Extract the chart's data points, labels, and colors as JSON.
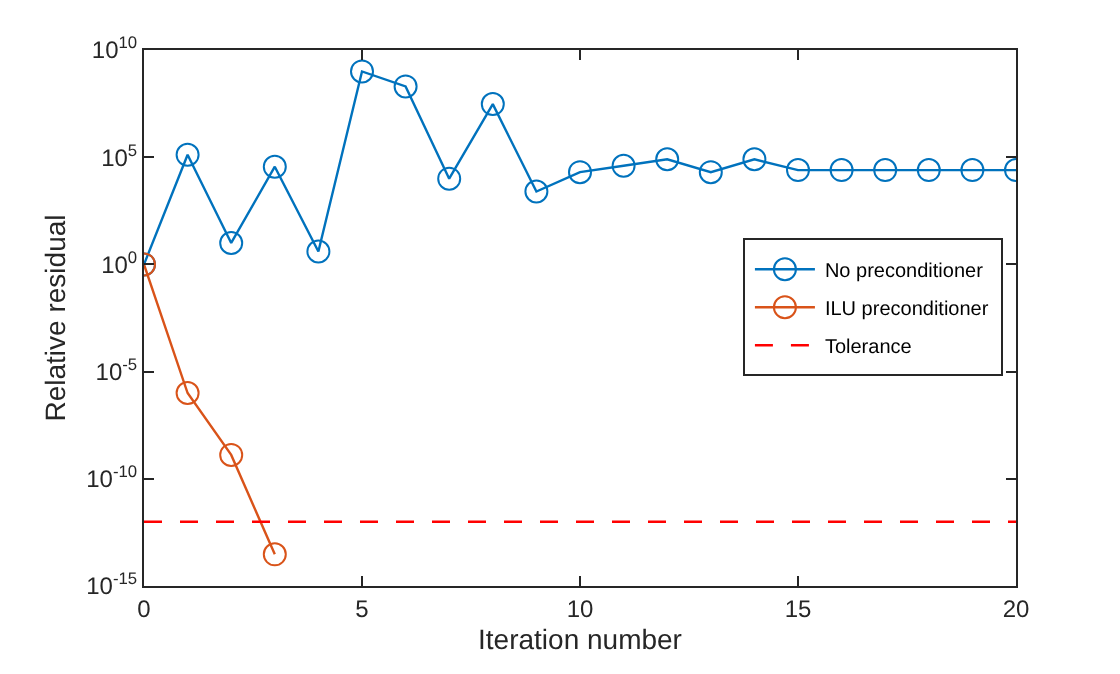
{
  "chart_data": {
    "type": "line",
    "xlabel": "Iteration number",
    "ylabel": "Relative residual",
    "x": [
      0,
      1,
      2,
      3,
      4,
      5,
      6,
      7,
      8,
      9,
      10,
      11,
      12,
      13,
      14,
      15,
      16,
      17,
      18,
      19,
      20
    ],
    "series": [
      {
        "name": "No preconditioner",
        "color": "#0072bd",
        "values": [
          1,
          130000,
          10,
          36000,
          4,
          1000000000,
          200000000,
          10000,
          30000000,
          2500,
          20000,
          40000,
          80000,
          20000,
          80000,
          25000,
          25000,
          25000,
          25000,
          25000,
          25000
        ]
      },
      {
        "name": "ILU preconditioner",
        "color": "#d95319",
        "x": [
          0,
          1,
          2,
          3
        ],
        "values": [
          1,
          1e-06,
          1.3e-09,
          3e-14
        ]
      }
    ],
    "ref_lines": [
      {
        "axis": "y",
        "value": 1e-12,
        "label": "Tolerance",
        "color": "#ff0000",
        "line_style": "dashed"
      }
    ],
    "log": "y",
    "marker": "circle",
    "line_style": "solid",
    "legend": "right",
    "xlim": [
      0,
      20
    ],
    "xticks": [
      0,
      5,
      10,
      15,
      20
    ],
    "ylim": [
      1e-15,
      10000000000.0
    ],
    "yticks": [
      {
        "value": 1e-15,
        "label": "10$^{-15}$"
      },
      {
        "value": 1e-10,
        "label": "10$^{-10}$"
      },
      {
        "value": 1e-05,
        "label": "10$^{-5}$"
      },
      {
        "value": 1,
        "label": "10$^{0}$"
      },
      {
        "value": 100000,
        "label": "10$^{5}$"
      },
      {
        "value": 10000000000,
        "label": "10$^{10}$"
      }
    ]
  }
}
